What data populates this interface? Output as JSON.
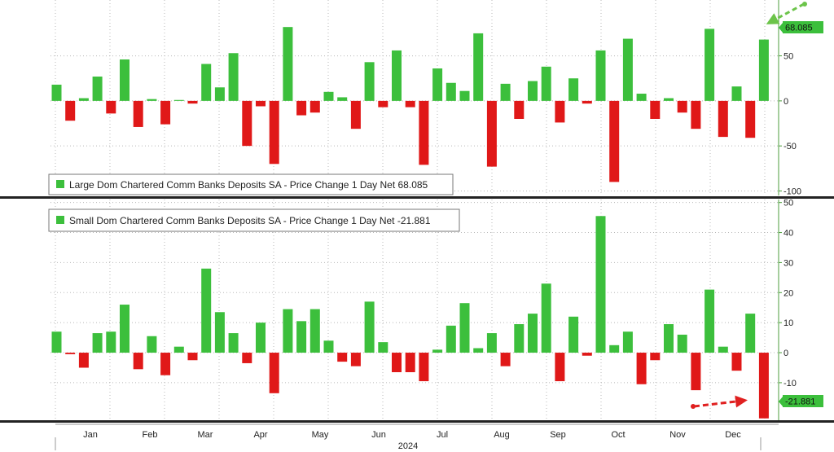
{
  "colors": {
    "positive": "#3cbf3c",
    "negative": "#e01818",
    "grid": "#b8b8b8",
    "badge_positive": "#3cbf3c",
    "badge_negative": "#3cbf3c",
    "arrow_green": "#6cc44a",
    "arrow_red": "#e02020"
  },
  "x_axis": {
    "months": [
      "Jan",
      "Feb",
      "Mar",
      "Apr",
      "May",
      "Jun",
      "Jul",
      "Aug",
      "Sep",
      "Oct",
      "Nov",
      "Dec"
    ],
    "year": "2024"
  },
  "chart_data": [
    {
      "type": "bar",
      "legend": "Large Dom Chartered Comm Banks Deposits SA - Price Change 1 Day Net 68.085",
      "last_value_label": "68.085",
      "ylim": [
        -105,
        112
      ],
      "yticks": [
        50,
        0,
        -50,
        -100
      ],
      "ytick_labels": [
        "50",
        "0",
        "-50",
        "-100"
      ],
      "values": [
        18,
        -22,
        3,
        27,
        -14,
        46,
        -29,
        2,
        -26,
        1,
        -3,
        41,
        15,
        53,
        -50,
        -6,
        -70,
        82,
        -16,
        -13,
        10,
        4,
        -31,
        43,
        -7,
        56,
        -7,
        -71,
        36,
        20,
        11,
        75,
        -73,
        19,
        -20,
        22,
        38,
        -24,
        25,
        -3,
        56,
        -90,
        69,
        8,
        -20,
        3,
        -13,
        -31,
        80,
        -40,
        16,
        -41,
        68.085
      ]
    },
    {
      "type": "bar",
      "legend": "Small Dom Chartered Comm Banks Deposits SA - Price Change 1 Day Net -21.881",
      "last_value_label": "-21.881",
      "ylim": [
        -22.5,
        51
      ],
      "yticks": [
        50,
        40,
        30,
        20,
        10,
        0,
        -10
      ],
      "ytick_labels": [
        "50",
        "40",
        "30",
        "20",
        "10",
        "0",
        "-10"
      ],
      "values": [
        7,
        -0.5,
        -5,
        6.5,
        7,
        16,
        -5.5,
        5.5,
        -7.5,
        2,
        -2.5,
        28,
        13.5,
        6.5,
        -3.5,
        10,
        -13.5,
        14.5,
        10.5,
        14.5,
        4,
        -3,
        -4.5,
        17,
        3.5,
        -6.5,
        -6.5,
        -9.5,
        1,
        9,
        16.5,
        1.5,
        6.5,
        -4.5,
        9.5,
        13,
        23,
        -9.5,
        12,
        -1,
        45.5,
        2.5,
        7,
        -10.5,
        -2.5,
        9.5,
        6,
        -12.5,
        21,
        2,
        -6,
        13,
        -21.881
      ]
    }
  ]
}
